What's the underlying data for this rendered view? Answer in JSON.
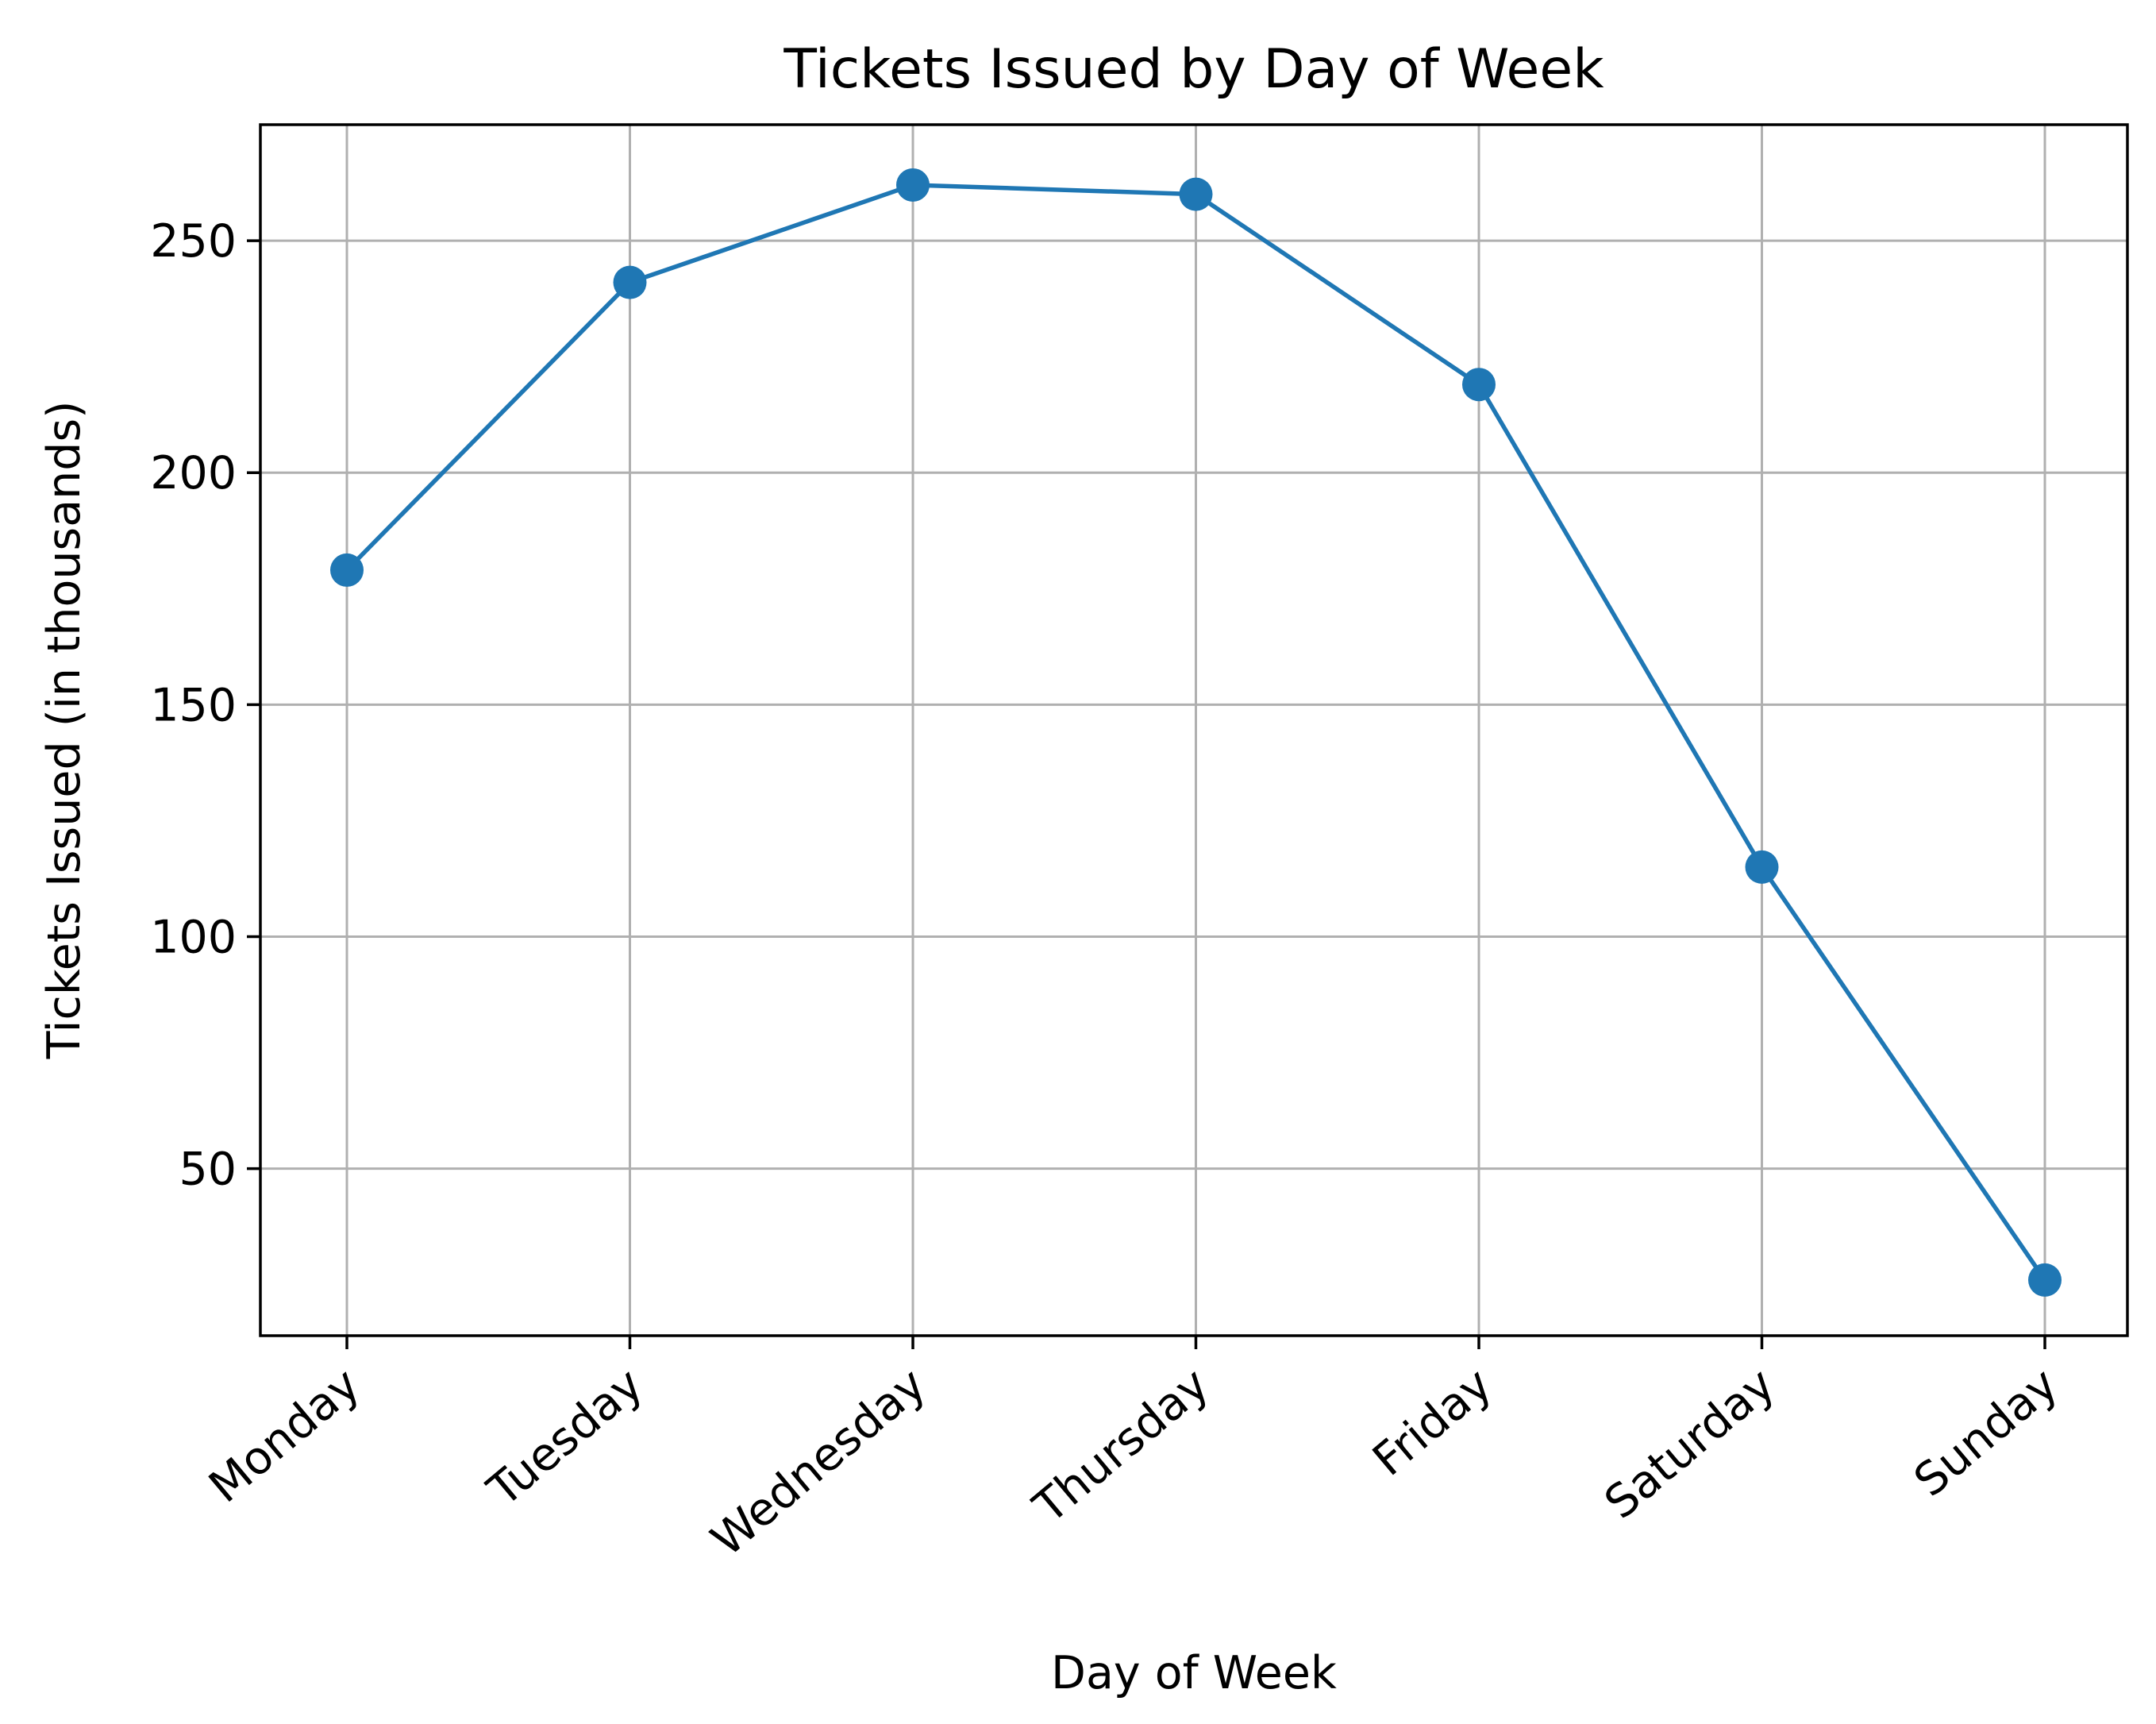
{
  "chart_data": {
    "type": "line",
    "title": "Tickets Issued by Day of Week",
    "xlabel": "Day of Week",
    "ylabel": "Tickets Issued (in thousands)",
    "categories": [
      "Monday",
      "Tuesday",
      "Wednesday",
      "Thursday",
      "Friday",
      "Saturday",
      "Sunday"
    ],
    "series": [
      {
        "values": [
          179,
          241,
          262,
          260,
          219,
          115,
          26
        ],
        "color": "#1f77b4",
        "marker": "circle"
      }
    ],
    "ylim": [
      14,
      275
    ],
    "yticks": [
      50,
      100,
      150,
      200,
      250
    ],
    "grid": true,
    "legend": "none"
  }
}
